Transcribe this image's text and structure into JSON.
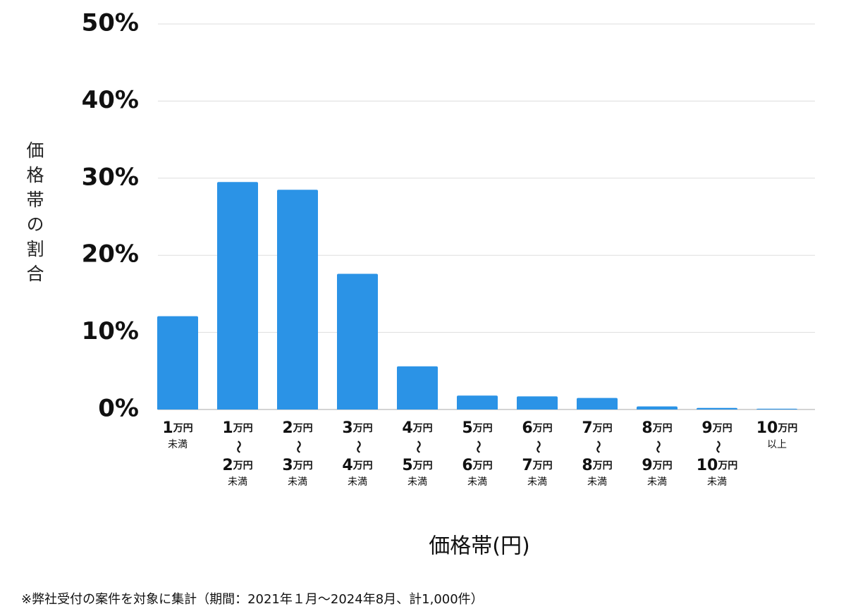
{
  "chart_data": {
    "type": "bar",
    "y_label": "価格帯の割合",
    "x_label": "価格帯(円)",
    "note": "※弊社受付の案件を対象に集計（期間：2021年１月〜2024年8月、計1,000件）",
    "categories": [
      [
        "1万円",
        "未満"
      ],
      [
        "1万円",
        "〜",
        "2万円",
        "未満"
      ],
      [
        "2万円",
        "〜",
        "3万円",
        "未満"
      ],
      [
        "3万円",
        "〜",
        "4万円",
        "未満"
      ],
      [
        "4万円",
        "〜",
        "5万円",
        "未満"
      ],
      [
        "5万円",
        "〜",
        "6万円",
        "未満"
      ],
      [
        "6万円",
        "〜",
        "7万円",
        "未満"
      ],
      [
        "7万円",
        "〜",
        "8万円",
        "未満"
      ],
      [
        "8万円",
        "〜",
        "9万円",
        "未満"
      ],
      [
        "9万円",
        "〜",
        "10万円",
        "未満"
      ],
      [
        "10万円",
        "以上"
      ]
    ],
    "values": [
      12.1,
      29.5,
      28.5,
      17.6,
      5.6,
      1.8,
      1.7,
      1.5,
      0.4,
      0.2,
      0.1
    ],
    "color": "#2b93e6",
    "ylim": [
      0,
      50
    ],
    "yticks": [
      {
        "value": 0,
        "label": "0%"
      },
      {
        "value": 10,
        "label": "10%"
      },
      {
        "value": 20,
        "label": "20%"
      },
      {
        "value": 30,
        "label": "30%"
      },
      {
        "value": 40,
        "label": "40%"
      },
      {
        "value": 50,
        "label": "50%"
      }
    ],
    "grid": true
  }
}
